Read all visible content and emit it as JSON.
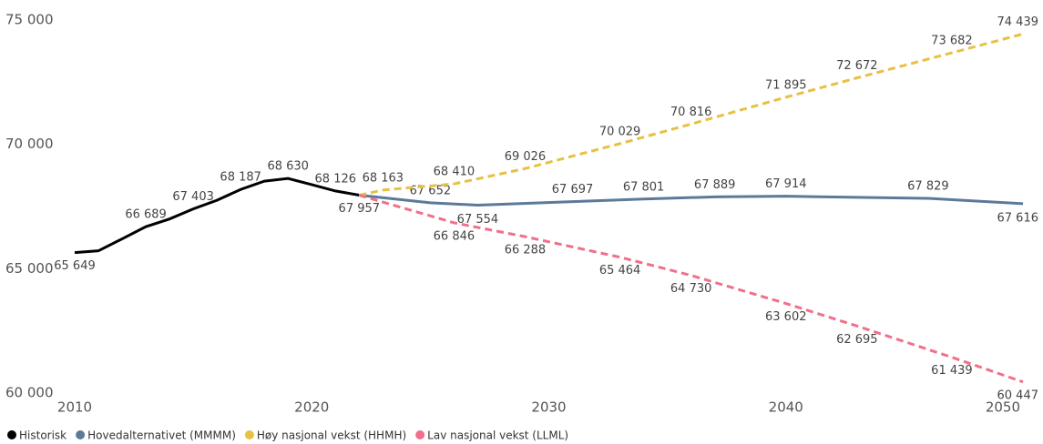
{
  "chart_data": {
    "type": "line",
    "xlim": [
      2010,
      2050
    ],
    "xticks": [
      2010,
      2020,
      2030,
      2040,
      2050
    ],
    "ylim": [
      60000,
      75000
    ],
    "yticks": [
      {
        "value": 60000,
        "label": "60 000"
      },
      {
        "value": 65000,
        "label": "65 000"
      },
      {
        "value": 70000,
        "label": "70 000"
      },
      {
        "value": 75000,
        "label": "75 000"
      }
    ],
    "grid": false,
    "legend": "bottom",
    "series": [
      {
        "name": "Historisk",
        "color": "#000000",
        "dash": false,
        "x": [
          2010,
          2011,
          2012,
          2013,
          2014,
          2015,
          2016,
          2017,
          2018,
          2019,
          2020,
          2021,
          2022
        ],
        "values": [
          65649,
          65720,
          66200,
          66689,
          67000,
          67403,
          67750,
          68187,
          68520,
          68630,
          68380,
          68126,
          67957
        ],
        "value_labels": [
          "65 649",
          null,
          null,
          "66 689",
          null,
          "67 403",
          null,
          "68 187",
          null,
          "68 630",
          null,
          "68 126",
          "67 957"
        ]
      },
      {
        "name": "Hovedalternativet (MMMM)",
        "color": "#5b7a99",
        "dash": false,
        "x": [
          2022,
          2025,
          2027,
          2031,
          2034,
          2037,
          2040,
          2046,
          2050
        ],
        "values": [
          67957,
          67652,
          67554,
          67697,
          67801,
          67889,
          67914,
          67829,
          67616
        ],
        "value_labels": [
          null,
          "67 652",
          "67 554",
          "67 697",
          "67 801",
          "67 889",
          "67 914",
          "67 829",
          "67 616"
        ]
      },
      {
        "name": "Høy nasjonal vekst (HHMH)",
        "color": "#e8c042",
        "dash": true,
        "x": [
          2022,
          2023,
          2026,
          2029,
          2033,
          2036,
          2040,
          2043,
          2047,
          2050
        ],
        "values": [
          67957,
          68163,
          68410,
          69026,
          70029,
          70816,
          71895,
          72672,
          73682,
          74439
        ],
        "value_labels": [
          null,
          "68 163",
          "68 410",
          "69 026",
          "70 029",
          "70 816",
          "71 895",
          "72 672",
          "73 682",
          "74 439"
        ]
      },
      {
        "name": "Lav nasjonal vekst (LLML)",
        "color": "#f0708a",
        "dash": true,
        "x": [
          2022,
          2026,
          2029,
          2033,
          2036,
          2040,
          2043,
          2047,
          2050
        ],
        "values": [
          67957,
          66846,
          66288,
          65464,
          64730,
          63602,
          62695,
          61439,
          60447
        ],
        "value_labels": [
          null,
          "66 846",
          "66 288",
          "65 464",
          "64 730",
          "63 602",
          "62 695",
          "61 439",
          "60 447"
        ]
      }
    ]
  }
}
